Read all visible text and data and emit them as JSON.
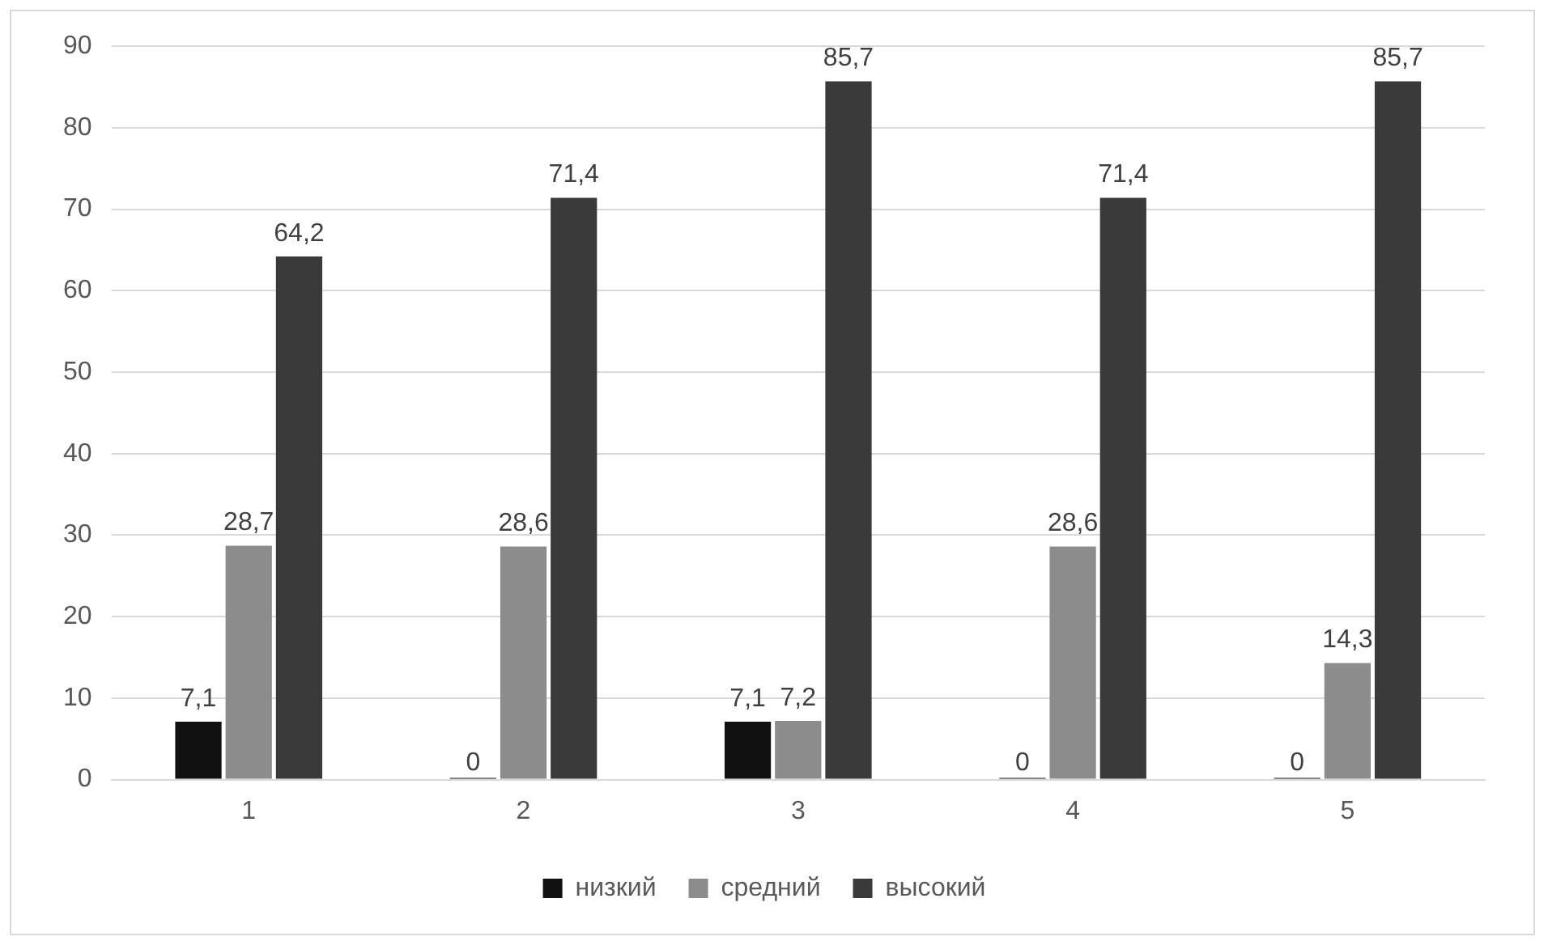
{
  "chart_data": {
    "type": "bar",
    "categories": [
      "1",
      "2",
      "3",
      "4",
      "5"
    ],
    "series": [
      {
        "name": "низкий",
        "color": "#111111",
        "values": [
          7.1,
          0,
          7.1,
          0,
          0
        ],
        "value_labels": [
          "7,1",
          "0",
          "7,1",
          "0",
          "0"
        ]
      },
      {
        "name": "средний",
        "color": "#8c8c8c",
        "values": [
          28.7,
          28.6,
          7.2,
          28.6,
          14.3
        ],
        "value_labels": [
          "28,7",
          "28,6",
          "7,2",
          "28,6",
          "14,3"
        ]
      },
      {
        "name": "высокий",
        "color": "#3a3a3a",
        "values": [
          64.2,
          71.4,
          85.7,
          71.4,
          85.7
        ],
        "value_labels": [
          "64,2",
          "71,4",
          "85,7",
          "71,4",
          "85,7"
        ]
      }
    ],
    "ylim": [
      0,
      90
    ],
    "yticks": [
      0,
      10,
      20,
      30,
      40,
      50,
      60,
      70,
      80,
      90
    ],
    "grid": "y",
    "legend": "bottom"
  }
}
